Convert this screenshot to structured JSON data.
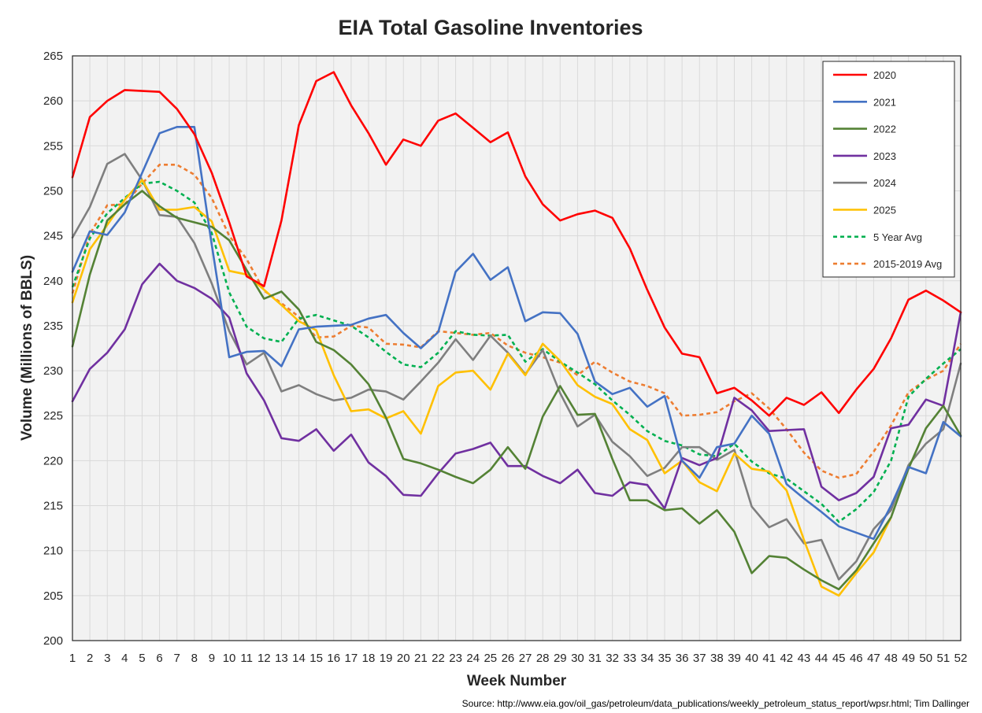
{
  "chart_data": {
    "type": "line",
    "title": "EIA Total Gasoline Inventories",
    "xlabel": "Week Number",
    "ylabel": "Volume (Millions of BBLS)",
    "source": "Source: http://www.eia.gov/oil_gas/petroleum/data_publications/weekly_petroleum_status_report/wpsr.html; Tim Dallinger",
    "xlim": [
      1,
      52
    ],
    "ylim": [
      200,
      265
    ],
    "ytick_step": 5,
    "grid": true,
    "legend_position": "top-right",
    "x": [
      1,
      2,
      3,
      4,
      5,
      6,
      7,
      8,
      9,
      10,
      11,
      12,
      13,
      14,
      15,
      16,
      17,
      18,
      19,
      20,
      21,
      22,
      23,
      24,
      25,
      26,
      27,
      28,
      29,
      30,
      31,
      32,
      33,
      34,
      35,
      36,
      37,
      38,
      39,
      40,
      41,
      42,
      43,
      44,
      45,
      46,
      47,
      48,
      49,
      50,
      51,
      52
    ],
    "series": [
      {
        "name": "2020",
        "color": "#ff0000",
        "dash": "solid",
        "values": [
          251.5,
          258.2,
          260.0,
          261.2,
          261.1,
          261.0,
          259.1,
          256.3,
          252.0,
          246.5,
          240.5,
          239.4,
          246.7,
          257.3,
          262.2,
          263.2,
          259.5,
          256.4,
          252.9,
          255.7,
          255.0,
          257.8,
          258.6,
          257.0,
          255.4,
          256.5,
          251.6,
          248.5,
          246.7,
          247.4,
          247.8,
          247.0,
          243.6,
          239.0,
          234.8,
          231.9,
          231.5,
          227.5,
          228.1,
          226.7,
          225.0,
          227.0,
          226.2,
          227.6,
          225.3,
          227.9,
          230.2,
          233.6,
          237.9,
          238.9,
          237.8,
          236.5
        ]
      },
      {
        "name": "2021",
        "color": "#4472c4",
        "dash": "solid",
        "values": [
          241.0,
          245.5,
          245.1,
          247.6,
          252.0,
          256.4,
          257.1,
          257.1,
          244.0,
          231.5,
          232.1,
          232.2,
          230.5,
          234.6,
          234.9,
          235.0,
          235.1,
          235.8,
          236.2,
          234.2,
          232.5,
          234.3,
          241.0,
          243.0,
          240.1,
          241.5,
          235.5,
          236.5,
          236.4,
          234.1,
          228.8,
          227.4,
          228.1,
          226.0,
          227.2,
          220.0,
          218.1,
          221.5,
          221.9,
          225.0,
          223.0,
          217.4,
          215.8,
          214.3,
          212.7,
          212.0,
          211.3,
          215.0,
          219.3,
          218.6,
          224.3,
          222.7
        ]
      },
      {
        "name": "2022",
        "color": "#548235",
        "dash": "solid",
        "values": [
          232.7,
          240.7,
          246.7,
          248.5,
          250.0,
          248.3,
          247.0,
          246.5,
          246.0,
          244.5,
          241.2,
          238.0,
          238.8,
          236.8,
          233.2,
          232.3,
          230.7,
          228.5,
          224.8,
          220.2,
          219.7,
          219.0,
          218.2,
          217.5,
          219.0,
          221.5,
          219.1,
          224.9,
          228.3,
          225.1,
          225.2,
          220.2,
          215.6,
          215.6,
          214.5,
          214.7,
          213.0,
          214.5,
          212.1,
          207.5,
          209.4,
          209.2,
          207.9,
          206.7,
          205.7,
          207.8,
          210.8,
          213.7,
          219.1,
          223.6,
          226.1,
          222.8
        ]
      },
      {
        "name": "2023",
        "color": "#7030a0",
        "dash": "solid",
        "values": [
          226.6,
          230.2,
          232.0,
          234.6,
          239.6,
          241.9,
          240.0,
          239.2,
          238.0,
          235.9,
          229.7,
          226.7,
          222.5,
          222.2,
          223.5,
          221.1,
          222.9,
          219.8,
          218.3,
          216.2,
          216.1,
          218.6,
          220.8,
          221.3,
          222.0,
          219.4,
          219.4,
          218.3,
          217.5,
          219.0,
          216.4,
          216.1,
          217.6,
          217.3,
          214.7,
          220.3,
          219.5,
          220.3,
          227.0,
          225.6,
          223.3,
          223.4,
          223.5,
          217.1,
          215.6,
          216.4,
          218.2,
          223.6,
          224.0,
          226.8,
          226.1,
          236.5
        ]
      },
      {
        "name": "2024",
        "color": "#7f7f7f",
        "dash": "solid",
        "values": [
          244.8,
          248.2,
          253.0,
          254.1,
          251.2,
          247.3,
          247.1,
          244.2,
          239.7,
          234.4,
          230.7,
          232.0,
          227.7,
          228.4,
          227.4,
          226.7,
          227.0,
          227.9,
          227.7,
          226.8,
          228.8,
          230.9,
          233.5,
          231.2,
          233.9,
          232.0,
          229.6,
          232.3,
          227.5,
          223.8,
          225.1,
          222.1,
          220.5,
          218.3,
          219.2,
          221.5,
          221.5,
          220.1,
          221.2,
          214.9,
          212.6,
          213.5,
          210.8,
          211.2,
          206.8,
          208.8,
          212.4,
          214.5,
          219.5,
          221.9,
          223.5,
          230.8
        ]
      },
      {
        "name": "2025",
        "color": "#ffc000",
        "dash": "solid",
        "values": [
          237.6,
          243.5,
          246.2,
          249.0,
          251.2,
          247.9,
          247.9,
          248.2,
          246.6,
          241.1,
          240.7,
          239.0,
          237.3,
          235.5,
          234.5,
          229.5,
          225.5,
          225.7,
          224.7,
          225.5,
          223.0,
          228.3,
          229.8,
          230.0,
          227.9,
          231.9,
          229.5,
          233.0,
          231.1,
          228.4,
          227.1,
          226.3,
          223.5,
          222.3,
          218.6,
          220.0,
          217.6,
          216.6,
          220.8,
          219.1,
          218.8,
          216.7,
          211.2,
          206.0,
          205.0,
          207.5,
          209.8,
          213.7,
          null,
          null,
          null,
          null
        ]
      },
      {
        "name": "5 Year Avg",
        "color": "#00b050",
        "dash": "dashed",
        "values": [
          239.3,
          244.7,
          247.5,
          249.2,
          250.8,
          251.0,
          250.0,
          248.7,
          245.3,
          238.7,
          234.9,
          233.6,
          233.2,
          235.8,
          236.2,
          235.6,
          235.0,
          233.7,
          232.1,
          230.7,
          230.4,
          232.0,
          234.4,
          234.0,
          233.9,
          234.0,
          231.0,
          232.4,
          231.0,
          229.8,
          228.5,
          226.7,
          225.1,
          223.3,
          222.2,
          221.7,
          220.7,
          220.5,
          221.9,
          219.9,
          218.6,
          218.0,
          216.6,
          215.2,
          213.2,
          214.6,
          216.5,
          220.0,
          227.1,
          229.1,
          230.8,
          232.4
        ]
      },
      {
        "name": "2015-2019 Avg",
        "color": "#ed7d31",
        "dash": "dashed",
        "values": [
          238.6,
          245.2,
          248.4,
          248.5,
          250.8,
          252.9,
          252.9,
          251.8,
          249.2,
          245.0,
          242.4,
          238.9,
          237.5,
          236.0,
          233.7,
          233.8,
          235.0,
          234.8,
          233.0,
          232.9,
          232.6,
          234.4,
          234.2,
          234.0,
          234.2,
          232.8,
          232.0,
          231.5,
          230.9,
          229.5,
          231.0,
          229.8,
          228.8,
          228.3,
          227.5,
          225.0,
          225.1,
          225.4,
          226.6,
          227.5,
          225.8,
          223.5,
          220.9,
          218.9,
          218.1,
          218.5,
          221.0,
          223.9,
          227.6,
          229.0,
          230.0,
          233.0
        ]
      }
    ]
  }
}
